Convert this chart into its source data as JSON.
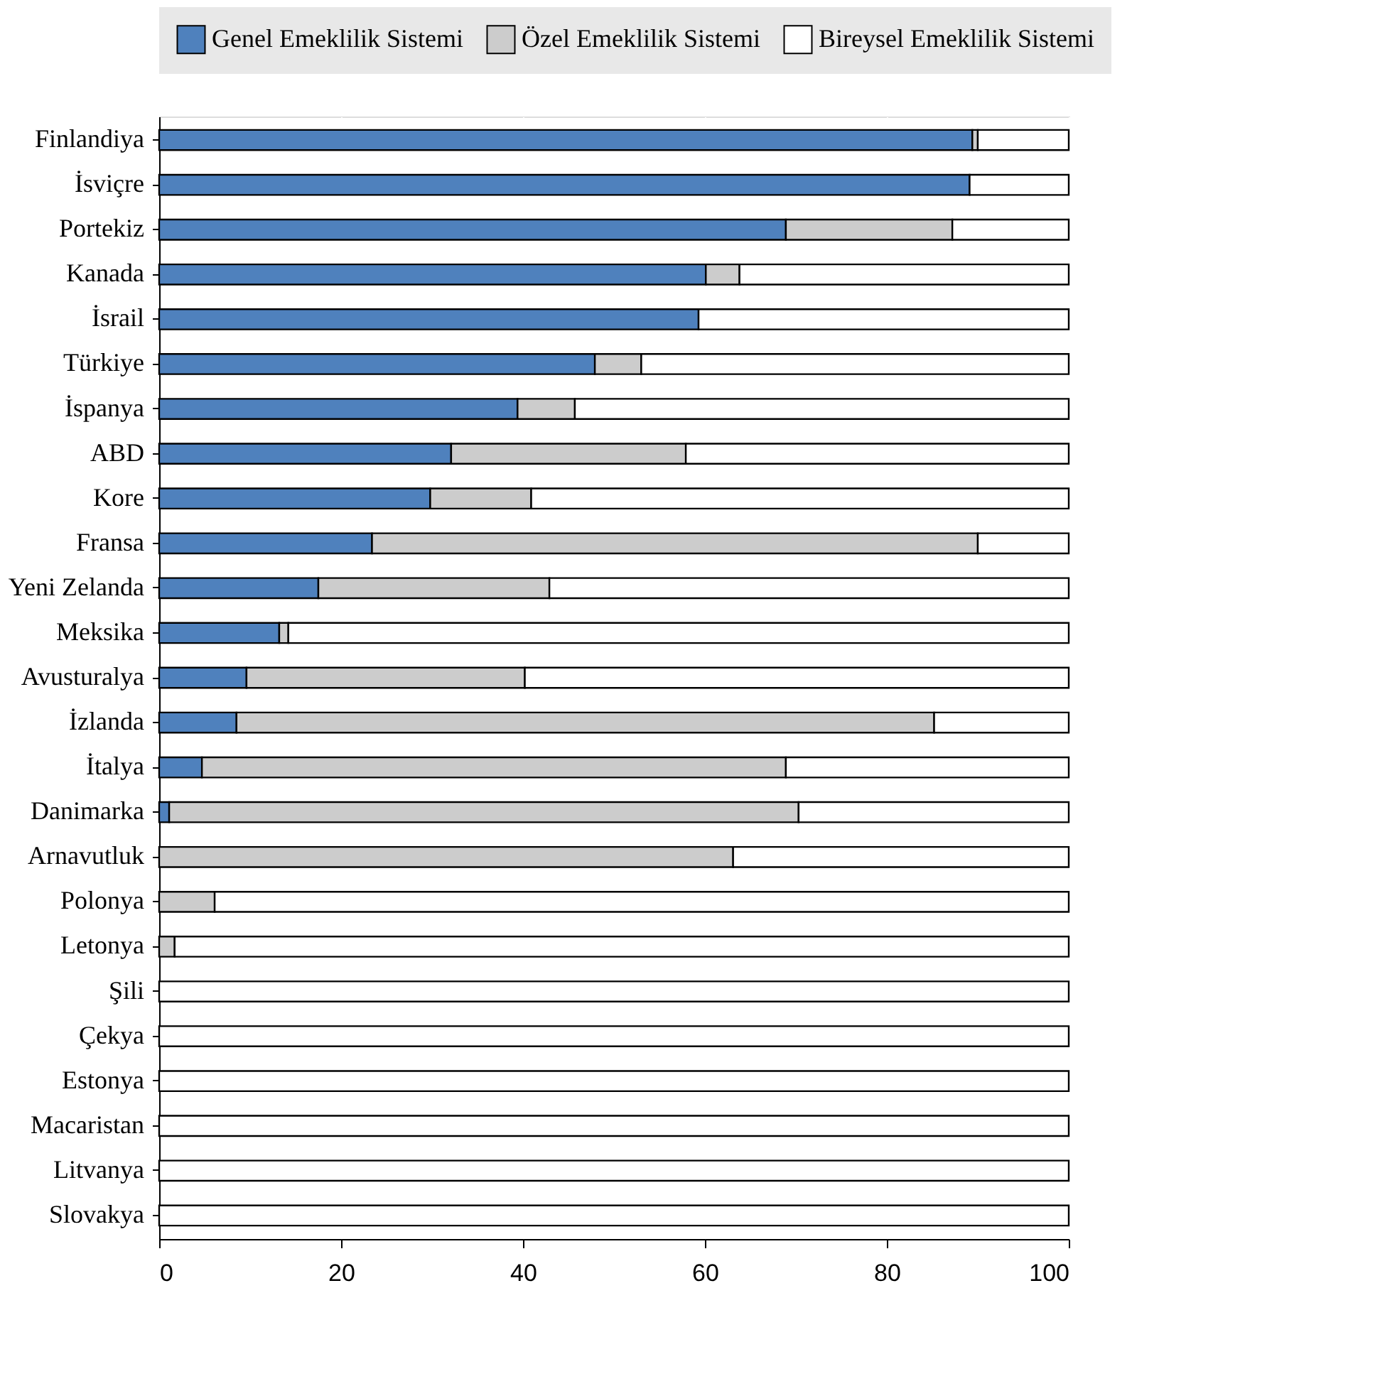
{
  "chart_data": {
    "type": "bar",
    "orientation": "horizontal",
    "stacked": true,
    "categories": [
      "Finlandiya",
      "İsviçre",
      "Portekiz",
      "Kanada",
      "İsrail",
      "Türkiye",
      "İspanya",
      "ABD",
      "Kore",
      "Fransa",
      "Yeni Zelanda",
      "Meksika",
      "Avusturalya",
      "İzlanda",
      "İtalya",
      "Danimarka",
      "Arnavutluk",
      "Polonya",
      "Letonya",
      "Şili",
      "Çekya",
      "Estonya",
      "Macaristan",
      "Litvanya",
      "Slovakya"
    ],
    "series": [
      {
        "name": "Genel Emeklilik Sistemi",
        "color": "#4f81bd",
        "values": [
          89.4,
          89.1,
          68.9,
          60.1,
          59.3,
          47.9,
          39.4,
          32.1,
          29.8,
          23.4,
          17.5,
          13.2,
          9.6,
          8.5,
          4.7,
          1.1,
          0,
          0,
          0,
          0,
          0,
          0,
          0,
          0,
          0
        ]
      },
      {
        "name": "Özel Emeklilik Sistemi",
        "color": "#cccccc",
        "values": [
          0.6,
          0,
          18.3,
          3.7,
          0,
          5.1,
          6.3,
          25.8,
          11.1,
          66.6,
          25.4,
          1.0,
          30.6,
          76.7,
          64.2,
          69.2,
          63.1,
          6.1,
          1.7,
          0,
          0,
          0,
          0,
          0,
          0
        ]
      },
      {
        "name": "Bireysel Emeklilik Sistemi",
        "color": "#ffffff",
        "values": [
          10.0,
          10.9,
          12.8,
          36.2,
          40.7,
          47.0,
          54.3,
          42.1,
          59.1,
          10.0,
          57.1,
          85.8,
          59.8,
          14.8,
          31.1,
          29.7,
          36.9,
          93.9,
          98.3,
          100,
          100,
          100,
          100,
          100,
          100
        ]
      }
    ],
    "xlim": [
      0,
      100
    ],
    "xticks": [
      0,
      20,
      40,
      60,
      80,
      100
    ],
    "grid": "x",
    "legend": "top"
  }
}
